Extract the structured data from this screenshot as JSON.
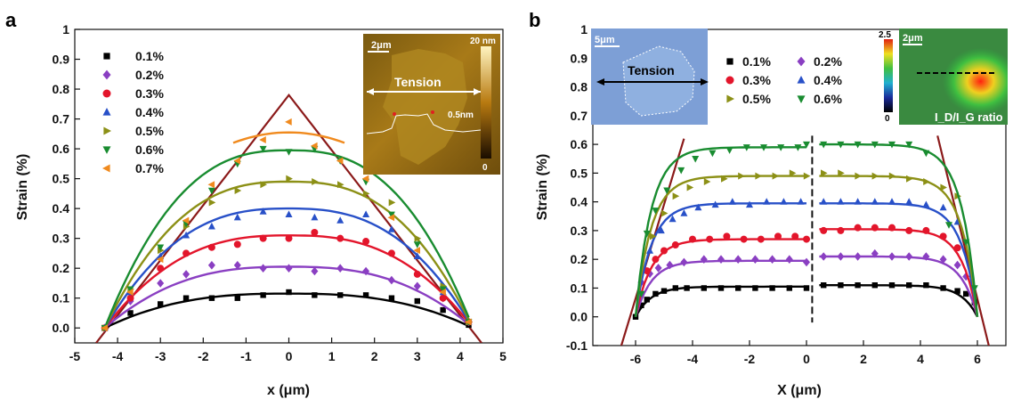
{
  "colors": {
    "0.1%": "#000000",
    "0.2%": "#8a3fc2",
    "0.3%": "#e3152b",
    "0.4%": "#2850c8",
    "0.5%": "#8c9016",
    "0.6%": "#198c30",
    "0.7%": "#f08a1e",
    "envelope": "#8b1a1a"
  },
  "chart_data": [
    {
      "type": "scatter",
      "panel_label": "a",
      "xlabel": "x (μm)",
      "ylabel": "Strain (%)",
      "xlim": [
        -5,
        5
      ],
      "ylim": [
        -0.05,
        1.0
      ],
      "xticks": [
        -5,
        -4,
        -3,
        -2,
        -1,
        0,
        1,
        2,
        3,
        4,
        5
      ],
      "yticks": [
        0.0,
        0.1,
        0.2,
        0.3,
        0.4,
        0.5,
        0.6,
        0.7,
        0.8,
        0.9,
        1.0
      ],
      "legend_position": "top-left",
      "envelope": {
        "x": [
          -4.5,
          0,
          4.5
        ],
        "y": [
          -0.05,
          0.78,
          -0.05
        ]
      },
      "series": [
        {
          "name": "0.1%",
          "marker": "square",
          "x": [
            -4.3,
            -3.7,
            -3.0,
            -2.4,
            -1.8,
            -1.2,
            -0.6,
            0,
            0.6,
            1.2,
            1.8,
            2.4,
            3.0,
            3.6,
            4.2
          ],
          "y": [
            0.0,
            0.05,
            0.08,
            0.1,
            0.1,
            0.1,
            0.11,
            0.12,
            0.11,
            0.11,
            0.11,
            0.1,
            0.09,
            0.06,
            0.01
          ],
          "fit_peak": 0.115
        },
        {
          "name": "0.2%",
          "marker": "diamond",
          "x": [
            -4.3,
            -3.7,
            -3.0,
            -2.4,
            -1.8,
            -1.2,
            -0.6,
            0,
            0.6,
            1.2,
            1.8,
            2.4,
            3.0,
            3.6,
            4.2
          ],
          "y": [
            0.0,
            0.09,
            0.15,
            0.18,
            0.21,
            0.21,
            0.2,
            0.2,
            0.19,
            0.2,
            0.19,
            0.16,
            0.14,
            0.1,
            0.02
          ],
          "fit_peak": 0.205
        },
        {
          "name": "0.3%",
          "marker": "circle",
          "x": [
            -4.3,
            -3.7,
            -3.0,
            -2.4,
            -1.8,
            -1.2,
            -0.6,
            0,
            0.6,
            1.2,
            1.8,
            2.4,
            3.0,
            3.6,
            4.2
          ],
          "y": [
            0.0,
            0.1,
            0.2,
            0.25,
            0.27,
            0.28,
            0.3,
            0.3,
            0.32,
            0.3,
            0.29,
            0.25,
            0.18,
            0.1,
            0.02
          ],
          "fit_peak": 0.31
        },
        {
          "name": "0.4%",
          "marker": "triangle-up",
          "x": [
            -4.3,
            -3.7,
            -3.0,
            -2.4,
            -1.8,
            -1.2,
            -0.6,
            0,
            0.6,
            1.2,
            1.8,
            2.4,
            3.0,
            3.6,
            4.2
          ],
          "y": [
            0.0,
            0.12,
            0.24,
            0.31,
            0.34,
            0.37,
            0.39,
            0.38,
            0.37,
            0.36,
            0.38,
            0.33,
            0.24,
            0.12,
            0.02
          ],
          "fit_peak": 0.4
        },
        {
          "name": "0.5%",
          "marker": "triangle-right",
          "x": [
            -4.3,
            -3.7,
            -3.0,
            -2.4,
            -1.8,
            -1.2,
            -0.6,
            0,
            0.6,
            1.2,
            1.8,
            2.4,
            3.0,
            3.6,
            4.2
          ],
          "y": [
            0.0,
            0.13,
            0.26,
            0.34,
            0.42,
            0.46,
            0.48,
            0.5,
            0.49,
            0.48,
            0.45,
            0.42,
            0.3,
            0.14,
            0.02
          ],
          "fit_peak": 0.49
        },
        {
          "name": "0.6%",
          "marker": "triangle-down",
          "x": [
            -4.3,
            -3.7,
            -3.0,
            -2.4,
            -1.8,
            -1.2,
            -0.6,
            0,
            0.6,
            1.2,
            1.8,
            2.4,
            3.0,
            3.6,
            4.2
          ],
          "y": [
            0.0,
            0.13,
            0.27,
            0.35,
            0.46,
            0.55,
            0.6,
            0.59,
            0.6,
            0.56,
            0.49,
            0.38,
            0.28,
            0.13,
            0.02
          ],
          "fit_peak": 0.595
        },
        {
          "name": "0.7%",
          "marker": "triangle-left",
          "x": [
            -4.3,
            -3.7,
            -3.0,
            -2.4,
            -1.8,
            -1.2,
            -0.6,
            0,
            0.6,
            1.2,
            1.8,
            2.4,
            3.0,
            3.6,
            4.2
          ],
          "y": [
            0.0,
            0.12,
            0.23,
            0.36,
            0.48,
            0.56,
            0.63,
            0.69,
            0.61,
            0.56,
            0.5,
            0.37,
            0.26,
            0.12,
            0.02
          ],
          "fit_peak": 0.655
        }
      ]
    },
    {
      "type": "scatter",
      "panel_label": "b",
      "xlabel": "X (μm)",
      "ylabel": "Strain (%)",
      "xlim": [
        -7.5,
        7
      ],
      "ylim": [
        -0.1,
        1.0
      ],
      "xticks": [
        -6,
        -4,
        -2,
        0,
        2,
        4,
        6
      ],
      "yticks": [
        -0.1,
        0.0,
        0.1,
        0.2,
        0.3,
        0.4,
        0.5,
        0.6,
        0.7,
        0.8,
        0.9,
        1.0
      ],
      "legend_position": "top-center",
      "crack_x": 0.2,
      "envelope_left": {
        "x": [
          -6.5,
          -4.3
        ],
        "y": [
          -0.1,
          0.62
        ]
      },
      "envelope_right": {
        "x": [
          6.4,
          4.6
        ],
        "y": [
          -0.1,
          0.63
        ]
      },
      "series": [
        {
          "name": "0.1%",
          "marker": "square",
          "left_plateau": 0.105,
          "right_plateau": 0.11,
          "x": [
            -6.0,
            -5.8,
            -5.6,
            -5.3,
            -5.0,
            -4.6,
            -4.2,
            -3.6,
            -3.0,
            -2.4,
            -1.8,
            -1.2,
            -0.6,
            0.0,
            0.6,
            1.2,
            1.8,
            2.4,
            3.0,
            3.6,
            4.2,
            4.8,
            5.3,
            5.6,
            5.9
          ],
          "y": [
            0.0,
            0.04,
            0.06,
            0.08,
            0.09,
            0.1,
            0.1,
            0.1,
            0.1,
            0.1,
            0.1,
            0.1,
            0.1,
            0.1,
            0.11,
            0.11,
            0.11,
            0.11,
            0.11,
            0.11,
            0.11,
            0.1,
            0.09,
            0.08,
            0.05
          ]
        },
        {
          "name": "0.2%",
          "marker": "diamond",
          "left_plateau": 0.195,
          "right_plateau": 0.21,
          "x": [
            -5.8,
            -5.5,
            -5.2,
            -4.8,
            -4.3,
            -3.6,
            -3.0,
            -2.4,
            -1.8,
            -1.2,
            -0.6,
            0.0,
            0.6,
            1.2,
            1.8,
            2.4,
            3.0,
            3.6,
            4.2,
            4.8,
            5.3,
            5.6
          ],
          "y": [
            0.12,
            0.15,
            0.17,
            0.18,
            0.19,
            0.2,
            0.2,
            0.2,
            0.2,
            0.2,
            0.2,
            0.19,
            0.21,
            0.21,
            0.21,
            0.22,
            0.21,
            0.21,
            0.21,
            0.2,
            0.18,
            0.14
          ]
        },
        {
          "name": "0.3%",
          "marker": "circle",
          "left_plateau": 0.27,
          "right_plateau": 0.305,
          "x": [
            -5.6,
            -5.3,
            -5.0,
            -4.6,
            -4.0,
            -3.4,
            -2.8,
            -2.2,
            -1.6,
            -1.0,
            -0.4,
            0.0,
            0.6,
            1.2,
            1.8,
            2.4,
            3.0,
            3.6,
            4.2,
            4.8,
            5.3
          ],
          "y": [
            0.16,
            0.2,
            0.23,
            0.25,
            0.27,
            0.27,
            0.28,
            0.27,
            0.27,
            0.28,
            0.28,
            0.27,
            0.3,
            0.3,
            0.31,
            0.31,
            0.31,
            0.3,
            0.3,
            0.28,
            0.24
          ]
        },
        {
          "name": "0.4%",
          "marker": "triangle-up",
          "left_plateau": 0.395,
          "right_plateau": 0.395,
          "x": [
            -5.5,
            -5.1,
            -4.7,
            -4.3,
            -3.8,
            -3.2,
            -2.6,
            -2.0,
            -1.4,
            -0.8,
            -0.2,
            0.6,
            1.2,
            1.8,
            2.4,
            3.0,
            3.6,
            4.2,
            4.8,
            5.3
          ],
          "y": [
            0.23,
            0.3,
            0.34,
            0.36,
            0.38,
            0.39,
            0.4,
            0.39,
            0.4,
            0.4,
            0.4,
            0.4,
            0.4,
            0.4,
            0.4,
            0.4,
            0.4,
            0.39,
            0.38,
            0.33
          ]
        },
        {
          "name": "0.5%",
          "marker": "triangle-right",
          "left_plateau": 0.49,
          "right_plateau": 0.49,
          "x": [
            -5.4,
            -5.0,
            -4.6,
            -4.1,
            -3.5,
            -2.9,
            -2.3,
            -1.7,
            -1.1,
            -0.5,
            0.0,
            0.6,
            1.2,
            1.8,
            2.4,
            3.0,
            3.6,
            4.2,
            4.8,
            5.3
          ],
          "y": [
            0.28,
            0.36,
            0.42,
            0.45,
            0.47,
            0.48,
            0.49,
            0.49,
            0.49,
            0.5,
            0.49,
            0.5,
            0.5,
            0.49,
            0.49,
            0.49,
            0.48,
            0.47,
            0.45,
            0.42
          ]
        },
        {
          "name": "0.6%",
          "marker": "triangle-down",
          "left_plateau": 0.59,
          "right_plateau": 0.6,
          "x": [
            -5.8,
            -5.6,
            -5.3,
            -4.9,
            -4.4,
            -3.9,
            -3.3,
            -2.7,
            -2.1,
            -1.5,
            -0.9,
            -0.3,
            0.0,
            0.6,
            1.2,
            1.8,
            2.4,
            3.0,
            3.6,
            4.2,
            5.0,
            5.6,
            5.9
          ],
          "y": [
            0.08,
            0.29,
            0.37,
            0.44,
            0.51,
            0.55,
            0.57,
            0.58,
            0.59,
            0.59,
            0.59,
            0.59,
            0.6,
            0.6,
            0.6,
            0.6,
            0.6,
            0.6,
            0.6,
            0.57,
            0.32,
            0.26,
            0.1
          ]
        }
      ]
    }
  ],
  "insets": {
    "a_afm": {
      "scalebar": "2μm",
      "tension_label": "Tension",
      "colorbar_max": "20 nm",
      "colorbar_min": "0",
      "height_label": "0.5nm"
    },
    "b_optical": {
      "scalebar": "5μm",
      "tension_label": "Tension"
    },
    "b_raman": {
      "scalebar": "2μm",
      "colorbar_max": "2.5",
      "colorbar_min": "0",
      "ratio_label": "I_D/I_G ratio"
    }
  }
}
